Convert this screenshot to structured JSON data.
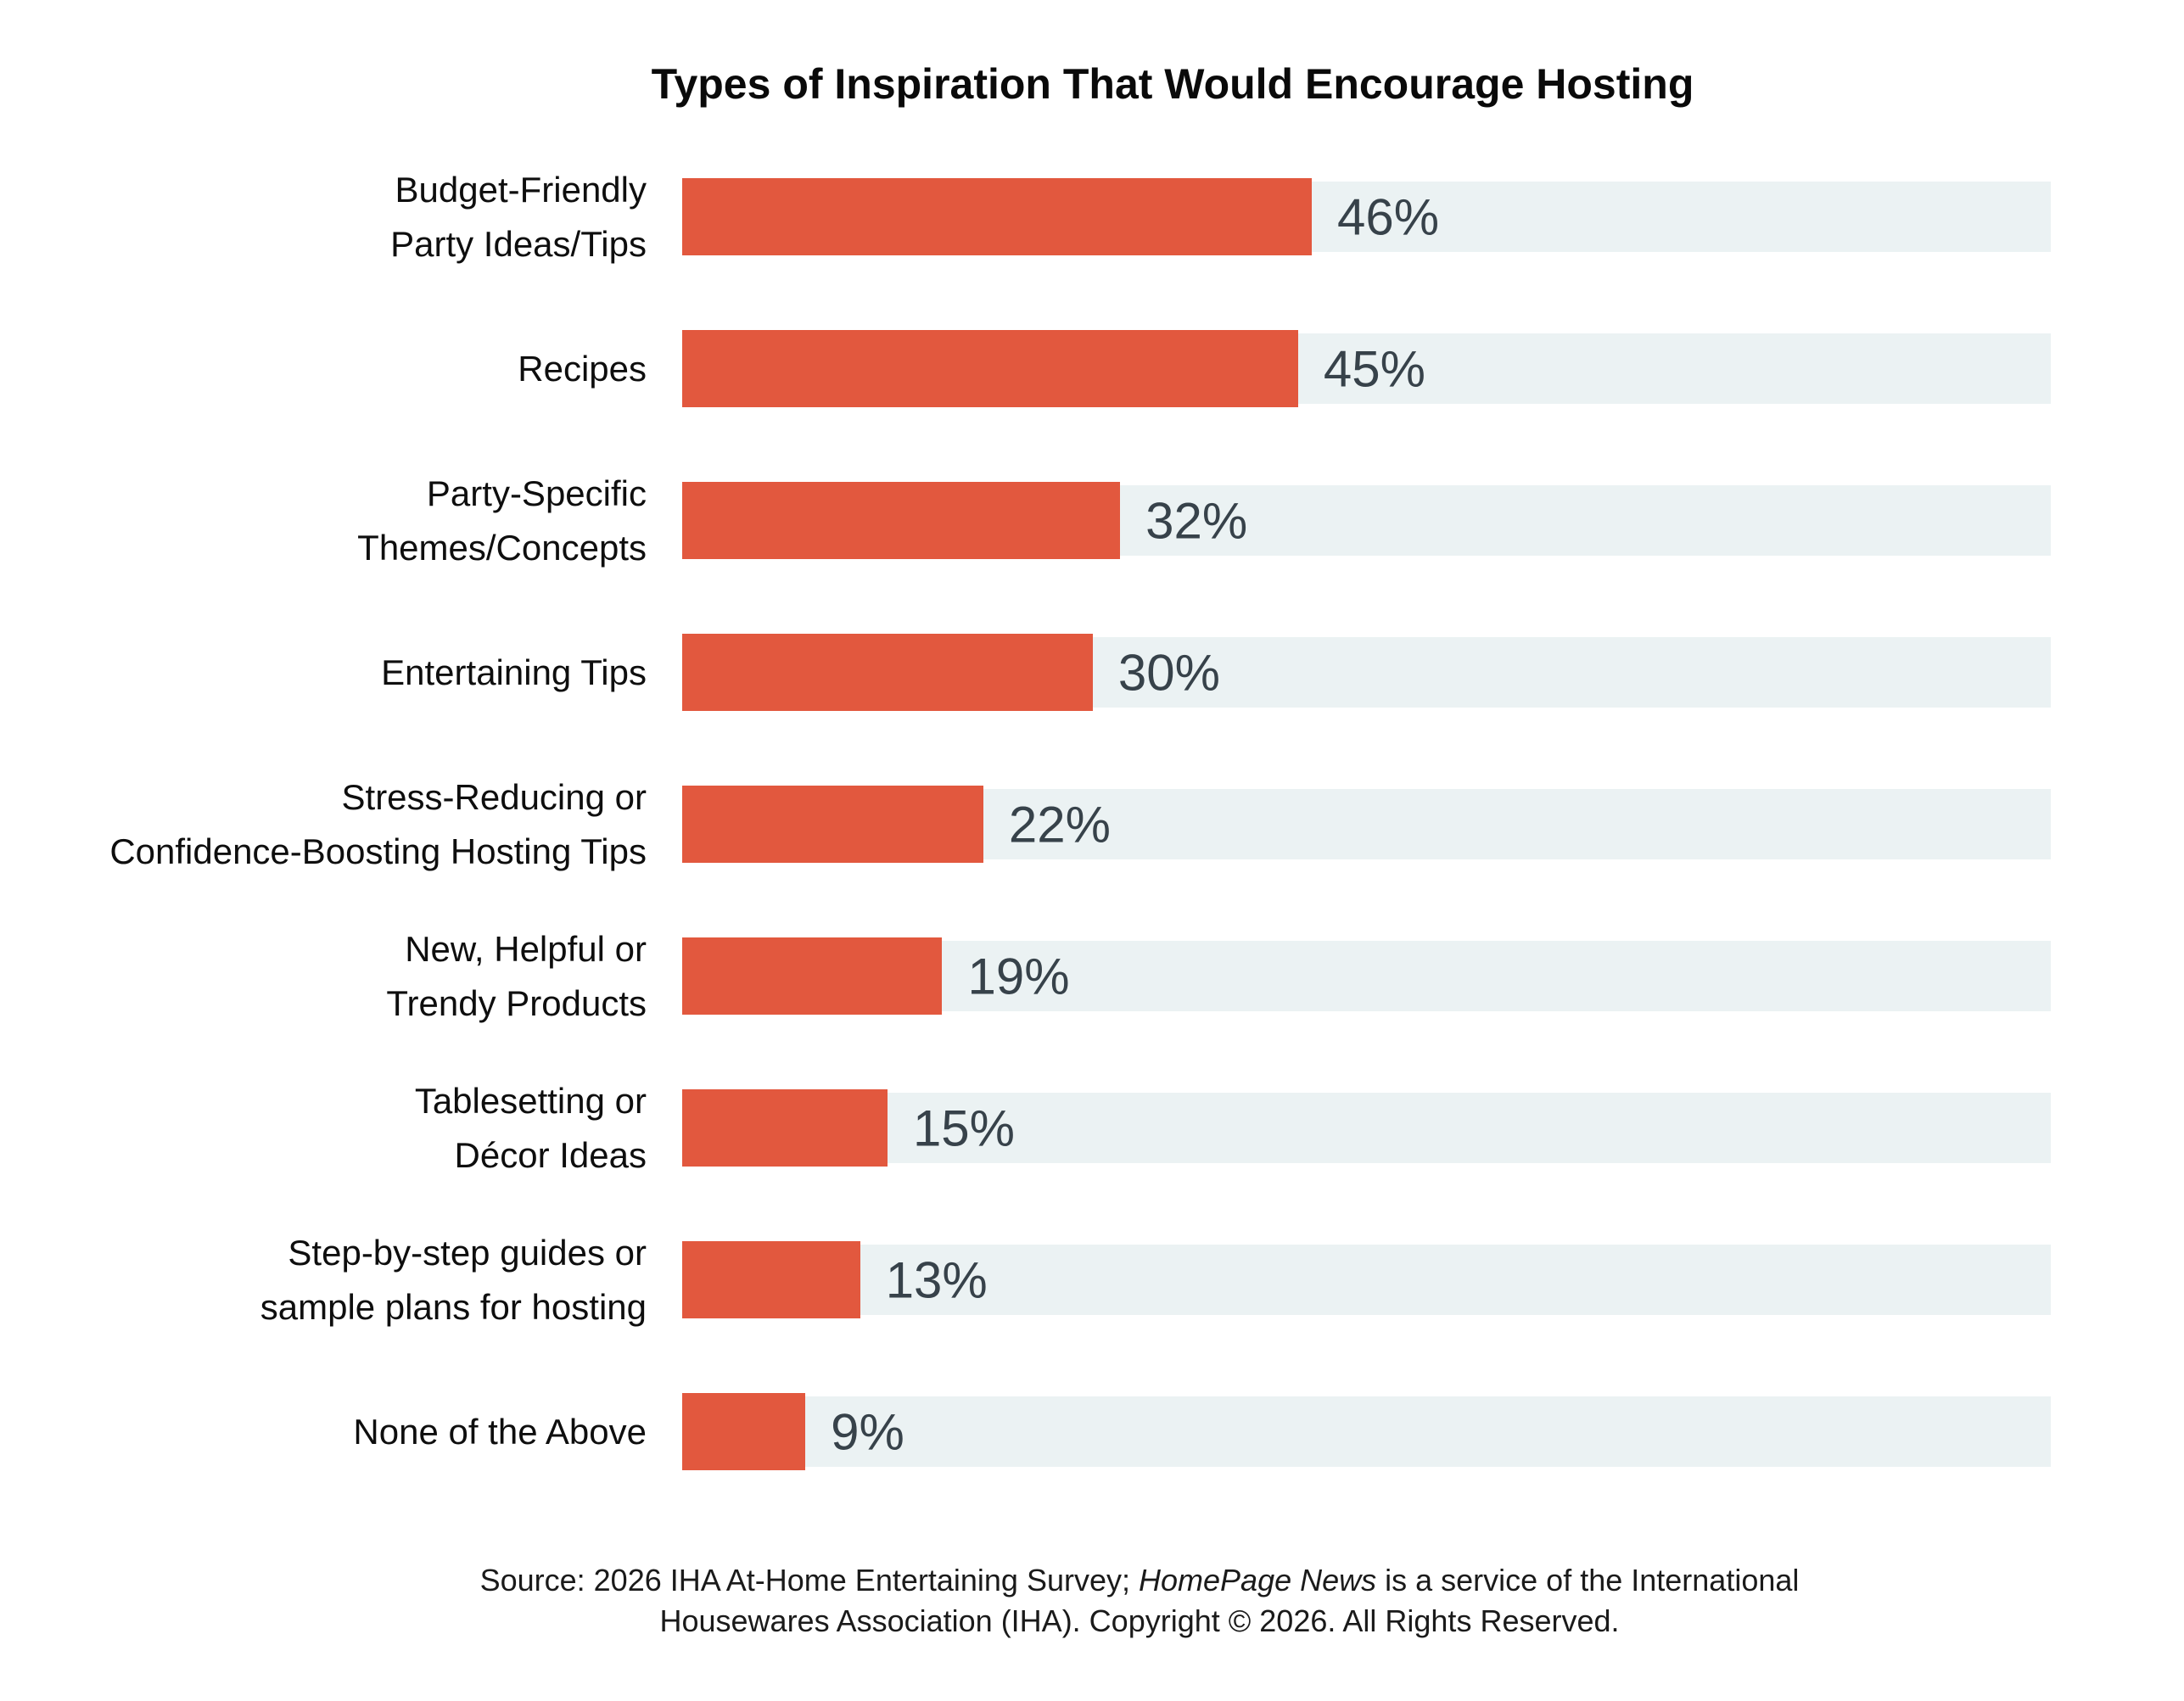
{
  "title": "Types of Inspiration That Would Encourage Hosting",
  "chart_data": {
    "type": "bar",
    "orientation": "horizontal",
    "title": "Types of Inspiration That Would Encourage Hosting",
    "categories": [
      "Budget-Friendly\nParty Ideas/Tips",
      "Recipes",
      "Party-Specific\nThemes/Concepts",
      "Entertaining Tips",
      "Stress-Reducing or\nConfidence-Boosting Hosting Tips",
      "New, Helpful or\nTrendy Products",
      "Tablesetting or\nDécor Ideas",
      "Step-by-step guides or\nsample plans for hosting",
      "None of the Above"
    ],
    "values": [
      46,
      45,
      32,
      30,
      22,
      19,
      15,
      13,
      9
    ],
    "value_labels": [
      "46%",
      "45%",
      "32%",
      "30%",
      "22%",
      "19%",
      "15%",
      "13%",
      "9%"
    ],
    "xlabel": "",
    "ylabel": "",
    "xlim": [
      0,
      100
    ],
    "grid": false,
    "legend_position": "none",
    "bar_color": "#E2583E",
    "track_color": "#EBF2F3",
    "value_text_color": "#37424A",
    "label_text_color": "#0E0E0E"
  },
  "source": {
    "line1_prefix": "Source: 2026 IHA At-Home Entertaining Survey; ",
    "line1_italic": "HomePage News",
    "line1_suffix": " is a service of the International",
    "line2": "Housewares Association (IHA). Copyright © 2026. All Rights Reserved."
  }
}
